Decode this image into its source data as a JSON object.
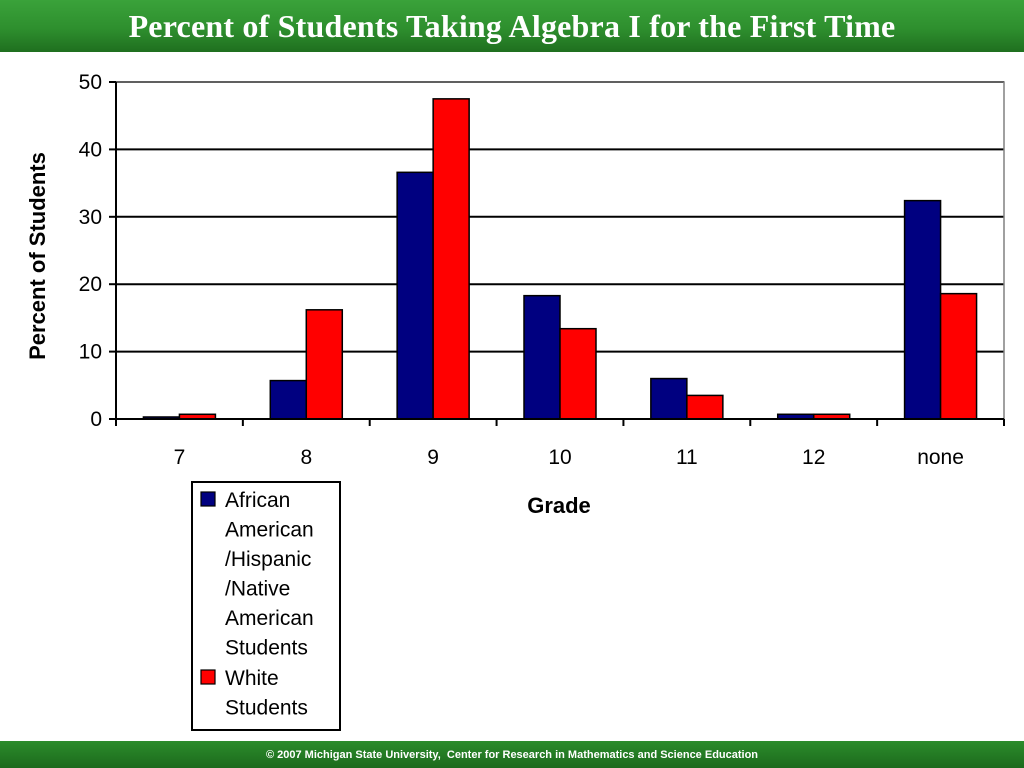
{
  "header": {
    "title": "Percent of Students Taking Algebra I for the First Time"
  },
  "footer": {
    "text": "© 2007 Michigan State University,  Center for Research in Mathematics and Science Education"
  },
  "colors": {
    "header_green": "#2e8f2e",
    "series_1": "#000080",
    "series_2": "#ff0000"
  },
  "chart_data": {
    "type": "bar",
    "title": "Percent of Students Taking Algebra I for the First Time",
    "xlabel": "Grade",
    "ylabel": "Percent of Students",
    "categories": [
      "7",
      "8",
      "9",
      "10",
      "11",
      "12",
      "none"
    ],
    "ylim": [
      0,
      50
    ],
    "yticks": [
      "0",
      "10",
      "20",
      "30",
      "40",
      "50"
    ],
    "grid": true,
    "legend_position": "bottom-left",
    "series": [
      {
        "name": "African American /Hispanic /Native American Students",
        "legend_lines": [
          "African",
          "American",
          "/Hispanic",
          "/Native",
          "American",
          "Students"
        ],
        "color": "#000080",
        "values": [
          0.3,
          5.7,
          36.6,
          18.3,
          6.0,
          0.7,
          32.4
        ]
      },
      {
        "name": "White Students",
        "legend_lines": [
          "White",
          "Students"
        ],
        "color": "#ff0000",
        "values": [
          0.7,
          16.2,
          47.5,
          13.4,
          3.5,
          0.7,
          18.6
        ]
      }
    ]
  }
}
